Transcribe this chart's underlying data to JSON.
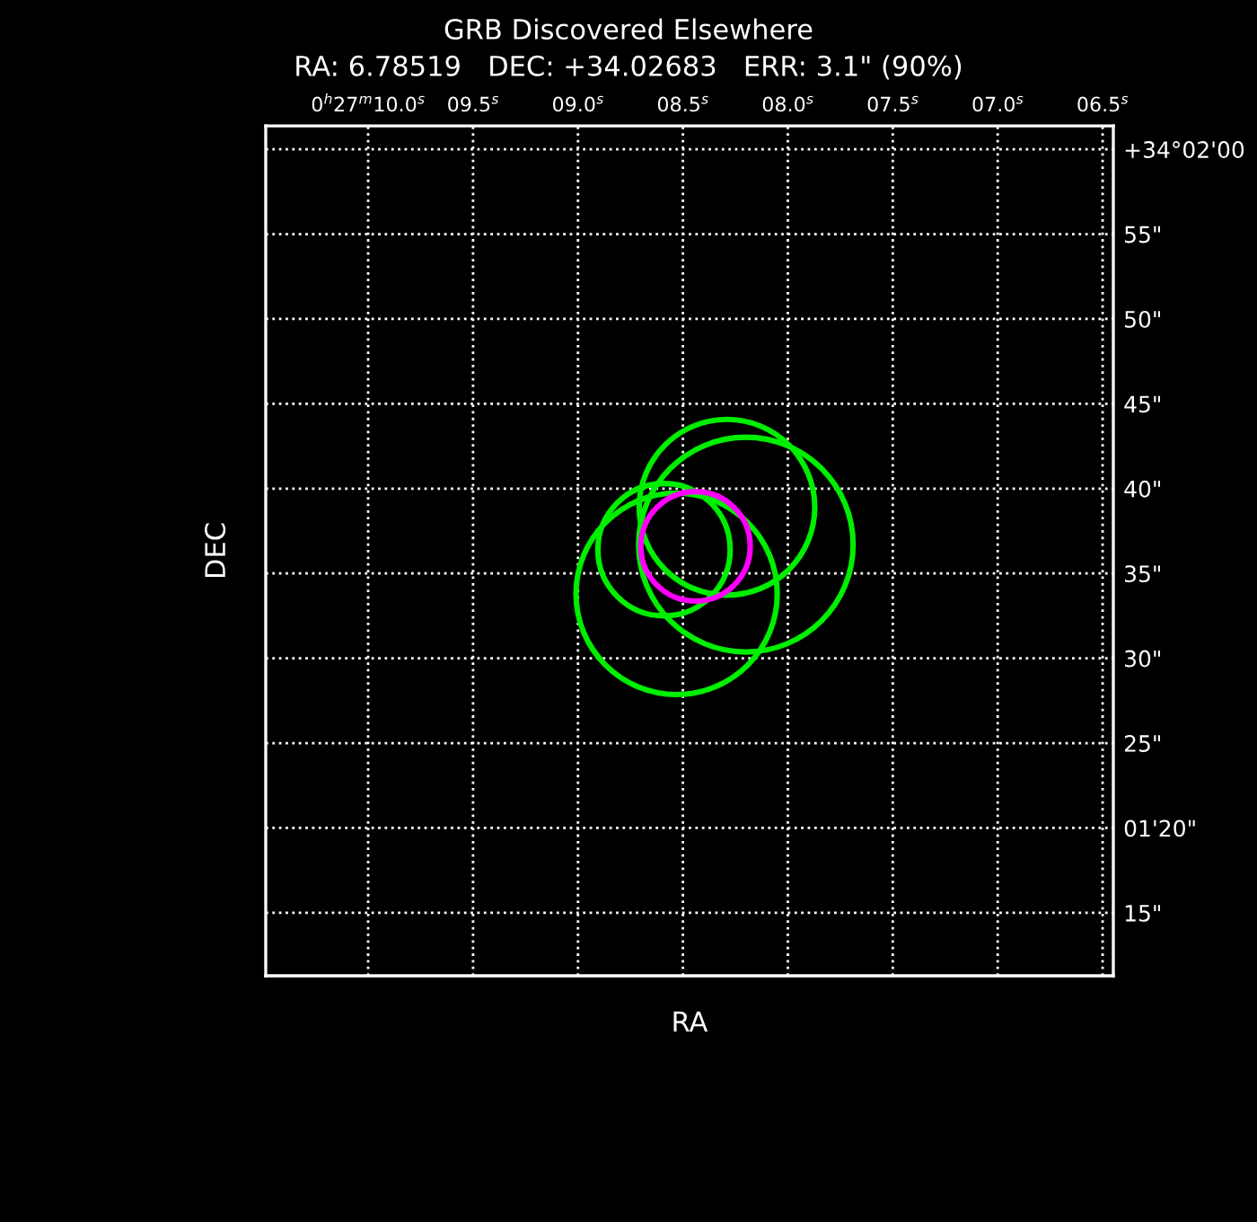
{
  "chart_data": {
    "type": "bubble",
    "title": "GRB Discovered Elsewhere",
    "subtitle": "RA: 6.78519   DEC: +34.02683   ERR: 3.1\" (90%)",
    "xlabel": "RA",
    "ylabel": "DEC",
    "series": [
      {
        "color": "#00ee00",
        "x": [
          8.29,
          8.2,
          8.59,
          8.53
        ],
        "values": [
          38.9,
          36.7,
          36.4,
          33.8
        ],
        "sizes": [
          0.67,
          1,
          0.38,
          0.88
        ]
      },
      {
        "color": "#ff00ff",
        "x": [
          8.44
        ],
        "values": [
          36.6
        ],
        "sizes": [
          0.26
        ]
      }
    ],
    "xlim": [
      10.488,
      6.449
    ],
    "xticks": [
      {
        "value": 10.0,
        "label": "0$^{h}$27$^{m}$10.0$^{s}$"
      },
      {
        "value": 9.5,
        "label": "09.5$^{s}$"
      },
      {
        "value": 9.0,
        "label": "09.0$^{s}$"
      },
      {
        "value": 8.5,
        "label": "08.5$^{s}$"
      },
      {
        "value": 8.0,
        "label": "08.0$^{s}$"
      },
      {
        "value": 7.5,
        "label": "07.5$^{s}$"
      },
      {
        "value": 7.0,
        "label": "07.0$^{s}$"
      },
      {
        "value": 6.5,
        "label": "06.5$^{s}$"
      }
    ],
    "ylim": [
      11.29,
      61.38
    ],
    "yticks": [
      {
        "value": 60,
        "label": "+34°02'00"
      },
      {
        "value": 55,
        "label": "55\""
      },
      {
        "value": 50,
        "label": "50\""
      },
      {
        "value": 45,
        "label": "45\""
      },
      {
        "value": 40,
        "label": "40\""
      },
      {
        "value": 35,
        "label": "35\""
      },
      {
        "value": 30,
        "label": "30\""
      },
      {
        "value": 25,
        "label": "25\""
      },
      {
        "value": 20,
        "label": "01'20\""
      },
      {
        "value": 15,
        "label": "15\""
      }
    ],
    "grid": true,
    "line_style": "dotted",
    "marker": "circle",
    "legend": false
  }
}
